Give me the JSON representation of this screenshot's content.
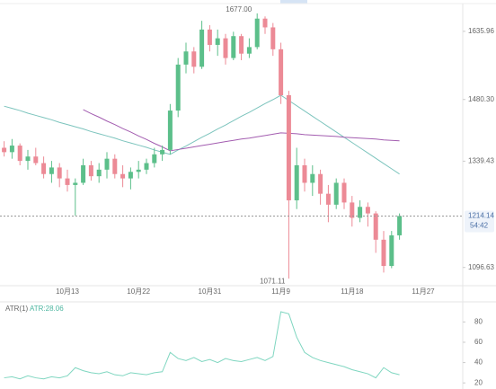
{
  "chart_data": {
    "type": "candlestick",
    "categories": [
      null,
      null,
      null,
      null,
      null,
      null,
      null,
      null,
      "10月13",
      null,
      null,
      null,
      null,
      null,
      null,
      null,
      null,
      "10月22",
      null,
      null,
      null,
      null,
      null,
      null,
      null,
      null,
      "10月31",
      null,
      null,
      null,
      null,
      null,
      null,
      null,
      null,
      "11月9",
      null,
      null,
      null,
      null,
      null,
      null,
      null,
      null,
      "11月18",
      null,
      null,
      null,
      null,
      null,
      null,
      null,
      null,
      "11月27"
    ],
    "open": [
      1370,
      1360,
      1375,
      1340,
      1350,
      1335,
      1310,
      1325,
      1300,
      1285,
      1290,
      1330,
      1305,
      1320,
      1345,
      1310,
      1300,
      1315,
      1320,
      1335,
      1355,
      1365,
      1455,
      1560,
      1590,
      1555,
      1640,
      1605,
      1620,
      1575,
      1625,
      1585,
      1600,
      1665,
      1645,
      1595,
      1490,
      1250,
      1330,
      1290,
      1310,
      1265,
      1240,
      1290,
      1245,
      1210,
      1235,
      1220,
      1160,
      1100,
      1170,
      null,
      null,
      null
    ],
    "high": [
      1385,
      1390,
      1380,
      1365,
      1370,
      1350,
      1340,
      1335,
      1320,
      1300,
      1345,
      1340,
      1335,
      1360,
      1355,
      1330,
      1325,
      1340,
      1345,
      1370,
      1375,
      1470,
      1575,
      1610,
      1600,
      1660,
      1650,
      1640,
      1630,
      1635,
      1630,
      1620,
      1677,
      1670,
      1655,
      1610,
      1500,
      1370,
      1345,
      1330,
      1320,
      1285,
      1300,
      1300,
      1260,
      1250,
      1245,
      1225,
      1180,
      1180,
      1220,
      null,
      null,
      null
    ],
    "low": [
      1350,
      1345,
      1330,
      1320,
      1330,
      1300,
      1290,
      1280,
      1270,
      1215,
      1285,
      1295,
      1290,
      1300,
      1300,
      1280,
      1275,
      1300,
      1310,
      1325,
      1340,
      1355,
      1440,
      1540,
      1540,
      1550,
      1590,
      1580,
      1560,
      1570,
      1570,
      1575,
      1595,
      1630,
      1580,
      1470,
      1071.11,
      1230,
      1270,
      1260,
      1240,
      1200,
      1230,
      1230,
      1190,
      1200,
      1190,
      1130,
      1085,
      1095,
      1160,
      null,
      null,
      null
    ],
    "close": [
      1360,
      1375,
      1340,
      1350,
      1335,
      1310,
      1325,
      1300,
      1285,
      1290,
      1330,
      1305,
      1320,
      1345,
      1310,
      1300,
      1315,
      1320,
      1335,
      1355,
      1365,
      1455,
      1560,
      1590,
      1555,
      1640,
      1605,
      1620,
      1575,
      1625,
      1585,
      1600,
      1665,
      1645,
      1595,
      1490,
      1250,
      1330,
      1290,
      1310,
      1265,
      1240,
      1290,
      1245,
      1210,
      1235,
      1220,
      1160,
      1100,
      1170,
      1214.14,
      null,
      null,
      null
    ],
    "up_color": "#5cbf8a",
    "down_color": "#ec8a96",
    "series": [
      {
        "color": "#7cc4bd",
        "values": [
          1465,
          1460,
          1455,
          1449,
          1444,
          1439,
          1434,
          1428,
          1423,
          1418,
          1413,
          1407,
          1402,
          1397,
          1392,
          1386,
          1381,
          1376,
          1371,
          1365,
          1360,
          1355,
          1365,
          1374,
          1384,
          1394,
          1403,
          1413,
          1422,
          1432,
          1442,
          1451,
          1461,
          1471,
          1480,
          1490,
          1478,
          1466,
          1454,
          1442,
          1430,
          1418,
          1406,
          1394,
          1382,
          1370,
          1358,
          1346,
          1334,
          1322,
          1310,
          null,
          null,
          null
        ]
      },
      {
        "color": "#a35db0",
        "values": [
          null,
          null,
          null,
          null,
          null,
          null,
          null,
          null,
          null,
          null,
          1457,
          1448,
          1440,
          1431,
          1423,
          1414,
          1406,
          1397,
          1389,
          1380,
          1372,
          1363,
          1366,
          1369,
          1372,
          1375,
          1378,
          1381,
          1384,
          1387,
          1390,
          1392,
          1395,
          1398,
          1401,
          1404,
          1403,
          1402,
          1400,
          1399,
          1398,
          1397,
          1396,
          1394,
          1393,
          1392,
          1391,
          1390,
          1388,
          1387,
          1386,
          null,
          null,
          null
        ]
      }
    ],
    "ylim": [
      1055,
      1687
    ],
    "yticks": [
      1635.96,
      {
        "value": 1480.3,
        "label": "1480.30"
      },
      1339.43,
      1096.63
    ],
    "high_label": {
      "value": 1677,
      "label": "1677.00"
    },
    "low_label": {
      "value": 1071.11,
      "label": "1071.11"
    },
    "last_price": {
      "value": 1214.14,
      "label": "1214.14"
    },
    "countdown": "54:42",
    "indicator": {
      "name": "ATR(1)",
      "label": "ATR:28.06",
      "value": 28.06,
      "color": "#7fd6c0",
      "values": [
        25,
        26,
        24,
        27,
        25,
        24,
        26,
        25,
        27,
        35,
        32,
        30,
        29,
        31,
        28,
        27,
        30,
        29,
        28,
        30,
        31,
        50,
        44,
        42,
        45,
        41,
        43,
        40,
        44,
        42,
        41,
        43,
        45,
        42,
        46,
        90,
        88,
        65,
        50,
        45,
        42,
        40,
        38,
        36,
        33,
        31,
        29,
        25,
        35,
        30,
        28.06,
        null,
        null,
        null
      ],
      "ylim": [
        14,
        98
      ],
      "yticks": [
        20,
        40,
        60,
        80
      ]
    }
  }
}
